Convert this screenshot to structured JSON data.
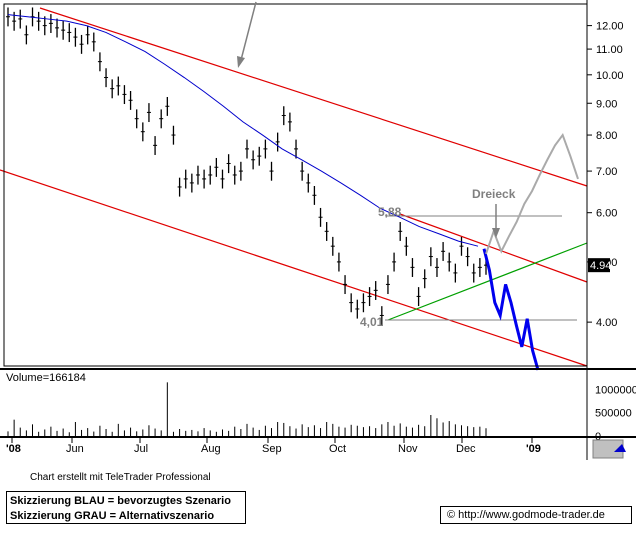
{
  "chart_data": {
    "type": "candlestick",
    "source_label": "Chart erstellt mit TeleTrader Professional",
    "legend_lines": [
      "Skizzierung BLAU = bevorzugtes Szenario",
      "Skizzierung GRAU = Alternativszenario"
    ],
    "url_label": "© http://www.godmode-trader.de",
    "volume_label": "Volume=166184",
    "price_axis": {
      "scale": "log",
      "range": [
        3.4,
        13.0
      ],
      "ticks": [
        "12.00",
        "11.00",
        "10.00",
        "9.00",
        "8.00",
        "7.00",
        "6.00",
        "5.00",
        "4.00"
      ]
    },
    "volume_axis": {
      "range": [
        0,
        1200000
      ],
      "ticks": [
        "1000000",
        "500000",
        "0"
      ]
    },
    "x_ticks": [
      "'08",
      "Jun",
      "Jul",
      "Aug",
      "Sep",
      "Oct",
      "Nov",
      "Dec",
      "'09"
    ],
    "last_price_label": "4.94",
    "annotations": {
      "high": "5,88",
      "low": "4,01",
      "pattern": "Dreieck"
    },
    "price_series": [
      12.4,
      12.2,
      12.3,
      11.6,
      12.4,
      12.2,
      12.0,
      12.1,
      11.9,
      11.8,
      11.7,
      11.5,
      11.2,
      11.6,
      11.3,
      10.5,
      9.9,
      9.5,
      9.6,
      9.3,
      9.1,
      8.5,
      8.1,
      8.7,
      7.7,
      8.5,
      8.9,
      8.0,
      6.6,
      6.8,
      6.7,
      6.9,
      6.8,
      6.9,
      7.1,
      6.8,
      7.2,
      6.9,
      7.0,
      7.6,
      7.3,
      7.4,
      7.6,
      7.0,
      7.8,
      8.6,
      8.4,
      7.6,
      7.0,
      6.7,
      6.4,
      5.9,
      5.6,
      5.3,
      5.0,
      4.6,
      4.3,
      4.2,
      4.3,
      4.4,
      4.5,
      4.1,
      4.6,
      5.0,
      5.6,
      5.3,
      4.9,
      4.4,
      4.7,
      5.1,
      4.9,
      5.2,
      5.0,
      4.8,
      5.3,
      5.1,
      4.8,
      4.9,
      4.94
    ],
    "moving_average": [
      12.5,
      12.4,
      12.3,
      12.2,
      12.0,
      11.7,
      11.3,
      10.9,
      10.4,
      9.9,
      9.4,
      8.9,
      8.4,
      8.0,
      7.6,
      7.3,
      7.0,
      6.7,
      6.4,
      6.1,
      5.9,
      5.7,
      5.55,
      5.4,
      5.3
    ],
    "volume_series": [
      100000,
      350000,
      180000,
      120000,
      250000,
      90000,
      140000,
      200000,
      110000,
      160000,
      80000,
      300000,
      130000,
      170000,
      95000,
      220000,
      150000,
      90000,
      260000,
      120000,
      180000,
      100000,
      140000,
      230000,
      160000,
      120000,
      1150000,
      90000,
      150000,
      110000,
      130000,
      100000,
      170000,
      120000,
      90000,
      140000,
      110000,
      200000,
      150000,
      260000,
      180000,
      130000,
      220000,
      170000,
      300000,
      280000,
      210000,
      160000,
      250000,
      190000,
      230000,
      170000,
      300000,
      260000,
      200000,
      180000,
      240000,
      220000,
      190000,
      210000,
      170000,
      250000,
      300000,
      220000,
      270000,
      200000,
      180000,
      240000,
      210000,
      450000,
      380000,
      290000,
      320000,
      250000,
      230000,
      210000,
      190000,
      200000,
      166184
    ],
    "blue_scenario": [
      5.25,
      4.85,
      4.3,
      4.1,
      4.6,
      4.3,
      3.95,
      3.65,
      4.05,
      3.6,
      3.35
    ],
    "gray_scenario": [
      5.15,
      5.6,
      5.2,
      5.5,
      5.8,
      6.2,
      6.5,
      6.9,
      7.3,
      7.7,
      8.0,
      7.4,
      6.8
    ]
  }
}
